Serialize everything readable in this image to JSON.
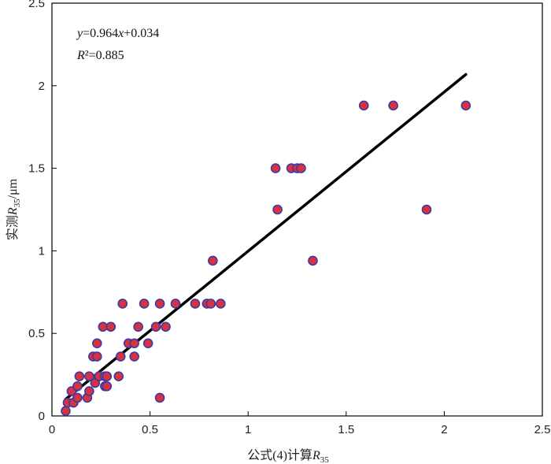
{
  "chart_data": {
    "type": "scatter",
    "xlabel_main": "公式(4)计算",
    "xlabel_var": "R",
    "xlabel_sub": "35",
    "ylabel_main": "实测",
    "ylabel_var": "R",
    "ylabel_sub": "35",
    "ylabel_unit": "/μm",
    "xlim": [
      0,
      2.5
    ],
    "ylim": [
      0,
      2.5
    ],
    "xticks": [
      "0",
      "0.5",
      "1",
      "1.5",
      "2",
      "2.5"
    ],
    "yticks": [
      "0",
      "0.5",
      "1",
      "1.5",
      "2",
      "2.5"
    ],
    "grid": false,
    "equation": {
      "y": "y",
      "eq": "=0.964",
      "x": "x",
      "rest": "+0.034"
    },
    "r2": {
      "R": "R",
      "rest": "²=0.885"
    },
    "fit": {
      "slope": 0.964,
      "intercept": 0.034,
      "x_range": [
        0.07,
        2.11
      ]
    },
    "marker_fill": "#d8323c",
    "marker_edge": "#3a3aa8",
    "line_color": "#000000",
    "points": [
      [
        0.07,
        0.03
      ],
      [
        0.08,
        0.08
      ],
      [
        0.1,
        0.15
      ],
      [
        0.11,
        0.08
      ],
      [
        0.13,
        0.11
      ],
      [
        0.13,
        0.18
      ],
      [
        0.14,
        0.24
      ],
      [
        0.18,
        0.11
      ],
      [
        0.19,
        0.15
      ],
      [
        0.19,
        0.24
      ],
      [
        0.21,
        0.36
      ],
      [
        0.22,
        0.2
      ],
      [
        0.23,
        0.44
      ],
      [
        0.23,
        0.36
      ],
      [
        0.24,
        0.24
      ],
      [
        0.26,
        0.54
      ],
      [
        0.27,
        0.18
      ],
      [
        0.27,
        0.24
      ],
      [
        0.28,
        0.18
      ],
      [
        0.28,
        0.24
      ],
      [
        0.3,
        0.54
      ],
      [
        0.34,
        0.24
      ],
      [
        0.35,
        0.36
      ],
      [
        0.36,
        0.68
      ],
      [
        0.39,
        0.44
      ],
      [
        0.42,
        0.44
      ],
      [
        0.42,
        0.36
      ],
      [
        0.44,
        0.54
      ],
      [
        0.47,
        0.68
      ],
      [
        0.49,
        0.44
      ],
      [
        0.53,
        0.54
      ],
      [
        0.55,
        0.68
      ],
      [
        0.55,
        0.11
      ],
      [
        0.58,
        0.54
      ],
      [
        0.63,
        0.68
      ],
      [
        0.73,
        0.68
      ],
      [
        0.79,
        0.68
      ],
      [
        0.81,
        0.68
      ],
      [
        0.82,
        0.94
      ],
      [
        0.86,
        0.68
      ],
      [
        1.14,
        1.5
      ],
      [
        1.15,
        1.25
      ],
      [
        1.22,
        1.5
      ],
      [
        1.25,
        1.5
      ],
      [
        1.27,
        1.5
      ],
      [
        1.33,
        0.94
      ],
      [
        1.59,
        1.88
      ],
      [
        1.74,
        1.88
      ],
      [
        1.91,
        1.25
      ],
      [
        2.11,
        1.88
      ]
    ]
  }
}
